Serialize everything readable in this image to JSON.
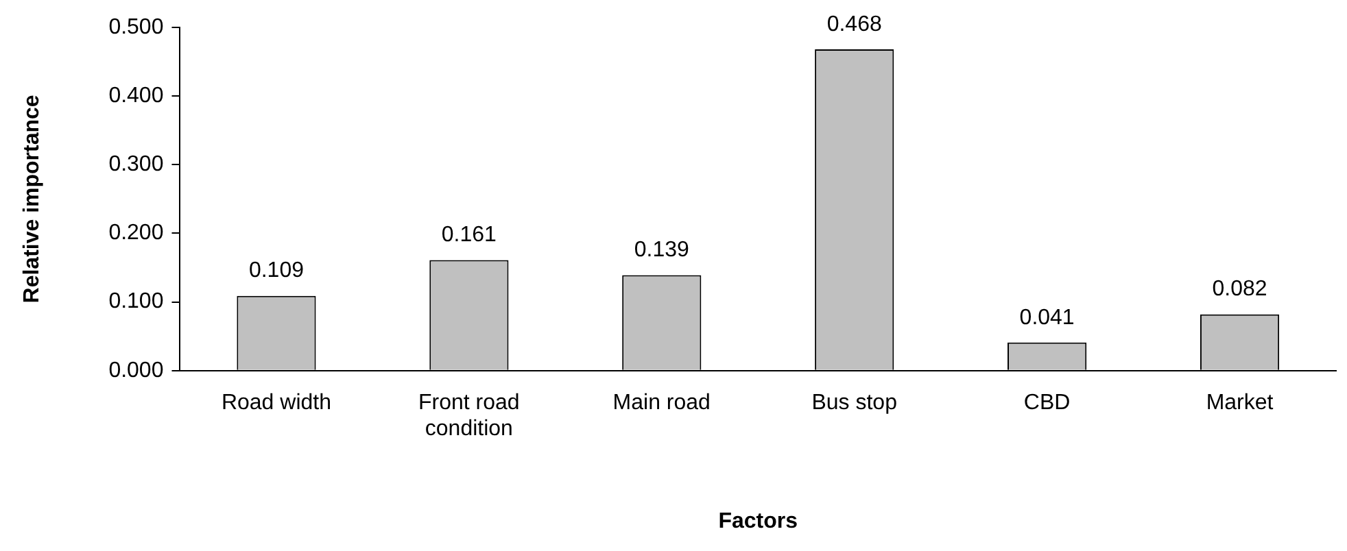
{
  "chart_data": {
    "type": "bar",
    "xlabel": "Factors",
    "ylabel": "Relative importance",
    "categories": [
      "Road width",
      "Front road condition",
      "Main road",
      "Bus stop",
      "CBD",
      "Market"
    ],
    "values": [
      0.109,
      0.161,
      0.139,
      0.468,
      0.041,
      0.082
    ],
    "color": "#c0c0c0",
    "ylim": [
      0,
      0.5
    ],
    "yticks": [
      {
        "value": 0,
        "label": "0.000"
      },
      {
        "value": 0.1,
        "label": "0.100"
      },
      {
        "value": 0.2,
        "label": "0.200"
      },
      {
        "value": 0.3,
        "label": "0.300"
      },
      {
        "value": 0.4,
        "label": "0.400"
      },
      {
        "value": 0.5,
        "label": "0.500"
      }
    ],
    "data_labels": true,
    "grid": false,
    "legend": false
  }
}
